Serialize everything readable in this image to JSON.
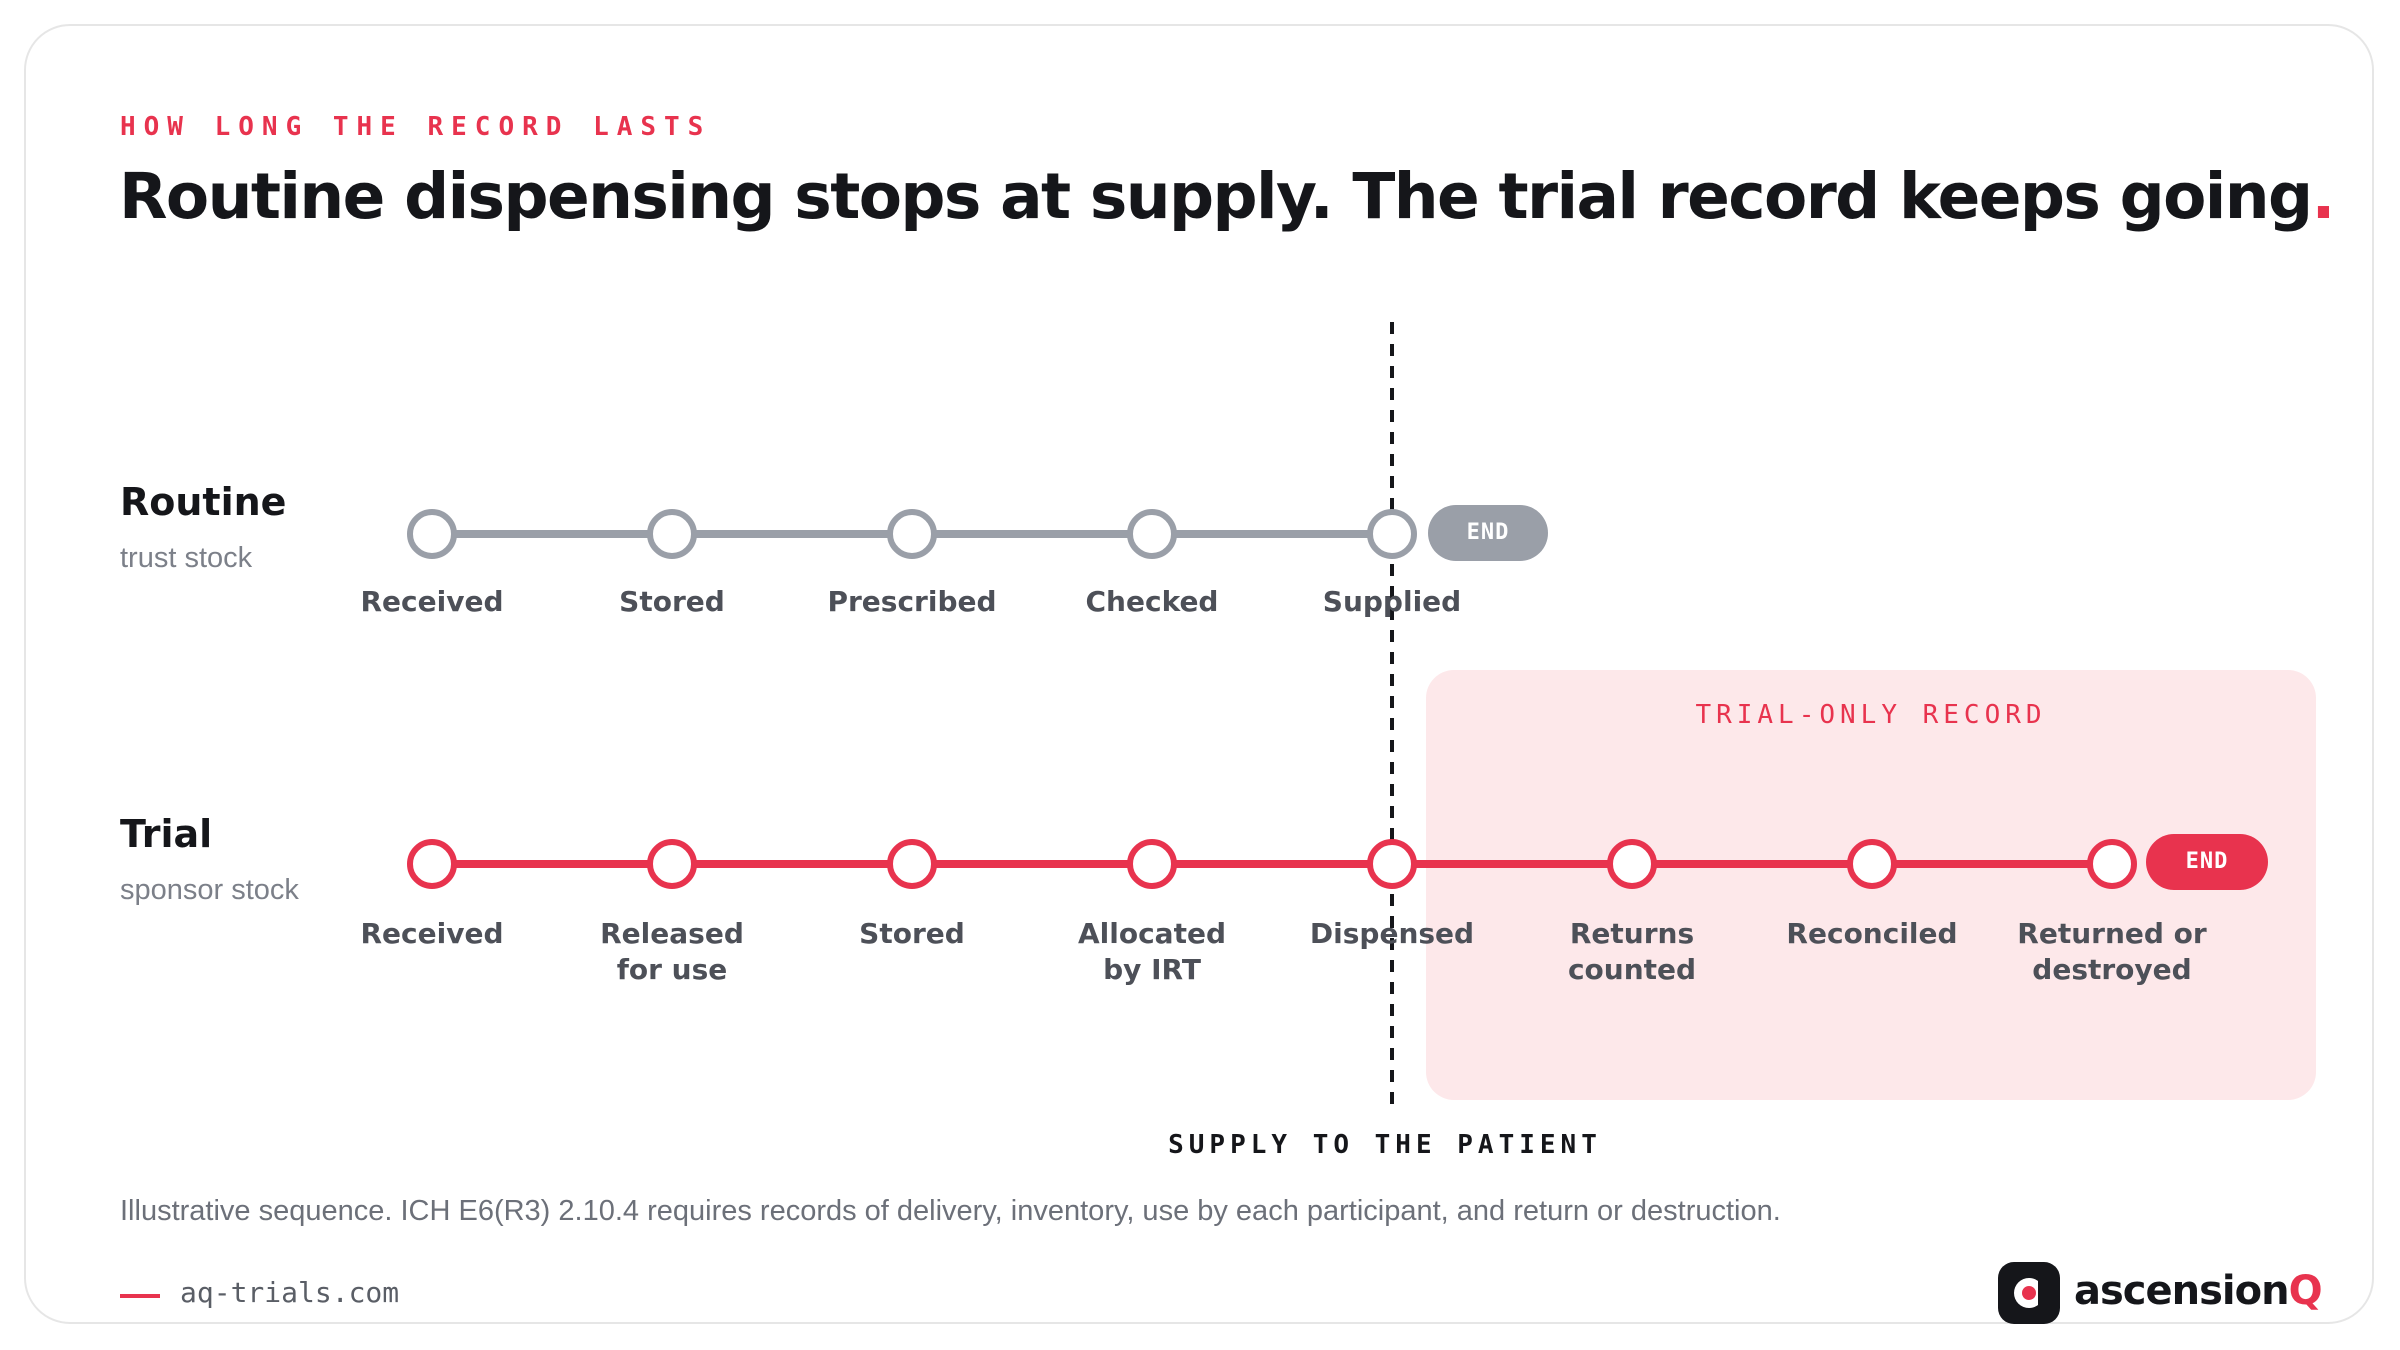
{
  "eyebrow": "HOW LONG THE RECORD LASTS",
  "title": {
    "text": "Routine dispensing stops at supply. The trial record keeps going",
    "period": "."
  },
  "routine": {
    "name": "Routine",
    "subtitle": "trust stock",
    "end_label": "END",
    "stages": [
      "Received",
      "Stored",
      "Prescribed",
      "Checked",
      "Supplied"
    ]
  },
  "trial": {
    "name": "Trial",
    "subtitle": "sponsor stock",
    "end_label": "END",
    "stages": [
      "Received",
      "Released\nfor use",
      "Stored",
      "Allocated\nby IRT",
      "Dispensed",
      "Returns\ncounted",
      "Reconciled",
      "Returned or\ndestroyed"
    ]
  },
  "trial_only_label": "TRIAL-ONLY RECORD",
  "divider_label": "SUPPLY TO THE PATIENT",
  "footnote": "Illustrative sequence. ICH E6(R3) 2.10.4 requires records of delivery, inventory, use by each participant, and return or destruction.",
  "footer": {
    "url": "aq-trials.com",
    "brand": "ascension",
    "brand_suffix": "Q"
  },
  "colors": {
    "accent": "#e8334e",
    "routine_line": "#9a9fa8",
    "trial_zone": "#fde8ea",
    "text": "#15161a"
  },
  "icons": {
    "brand_logo": "ascensionq-logo-icon"
  }
}
